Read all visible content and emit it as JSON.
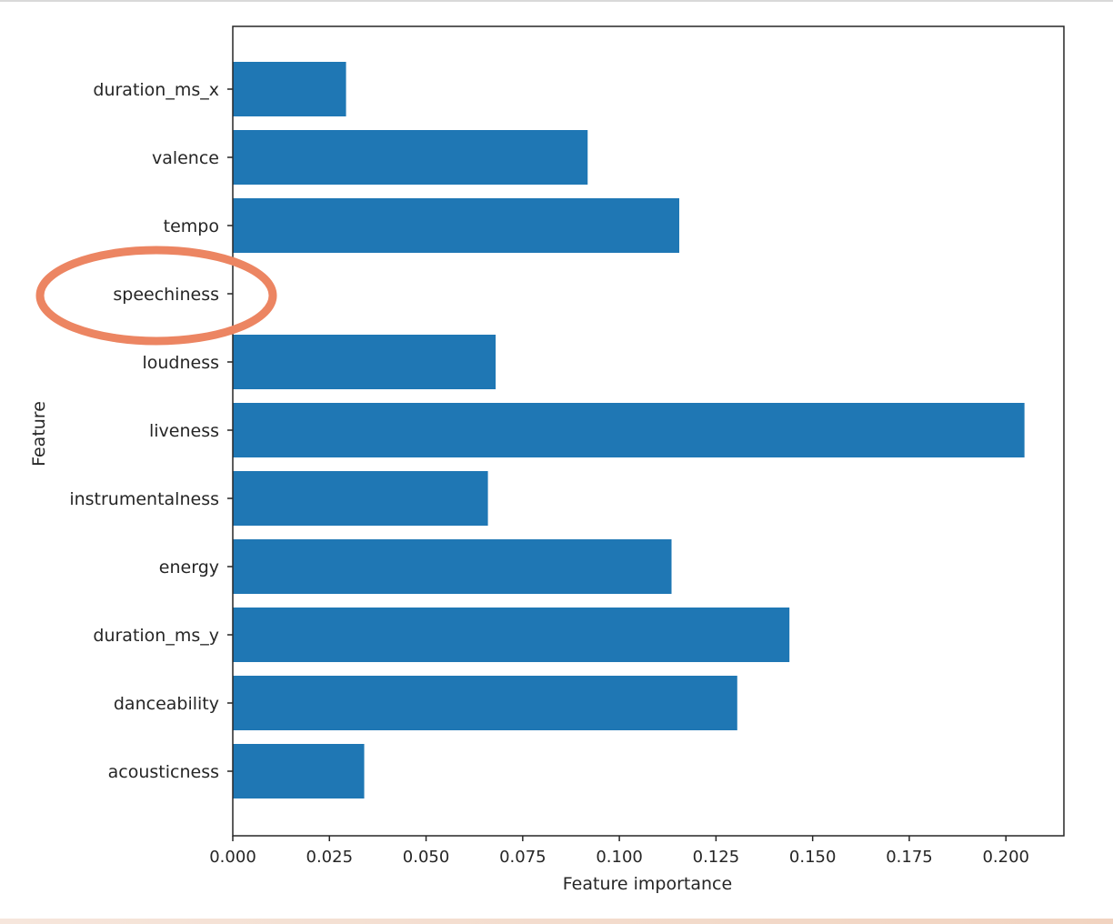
{
  "chart_data": {
    "type": "bar",
    "orientation": "horizontal",
    "categories": [
      "acousticness",
      "danceability",
      "duration_ms_y",
      "energy",
      "instrumentalness",
      "liveness",
      "loudness",
      "speechiness",
      "tempo",
      "valence",
      "duration_ms_x"
    ],
    "values": [
      0.034,
      0.1305,
      0.144,
      0.1135,
      0.066,
      0.2048,
      0.068,
      0.0,
      0.1155,
      0.0918,
      0.0293
    ],
    "xlabel": "Feature importance",
    "ylabel": "Feature",
    "xlim": [
      0.0,
      0.215
    ],
    "xticks": [
      "0.000",
      "0.025",
      "0.050",
      "0.075",
      "0.100",
      "0.125",
      "0.150",
      "0.175",
      "0.200"
    ],
    "bar_color": "#1f77b4",
    "grid": false,
    "annotations": [
      {
        "type": "ellipse-highlight",
        "target": "speechiness",
        "color": "#ec8562"
      }
    ]
  }
}
